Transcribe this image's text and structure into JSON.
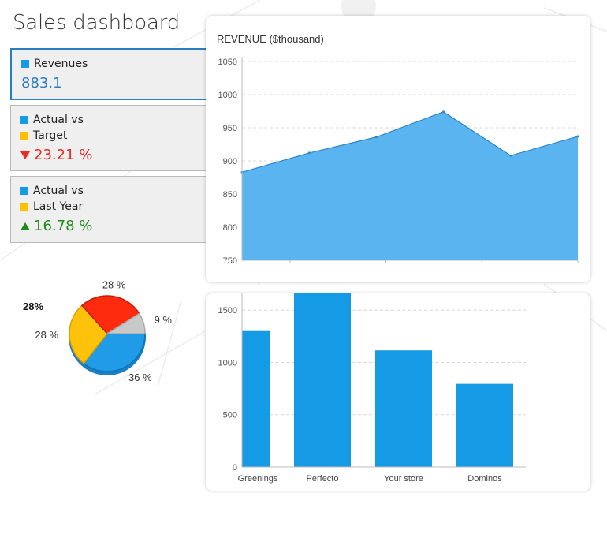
{
  "title": "Sales dashboard",
  "colors": {
    "accent": "#2a7ec0",
    "series_blue": "#159ae6",
    "area_fill": "#5ab4ef",
    "area_line": "#2f86c9",
    "legend_yellow": "#ffc000",
    "red": "#e82b22",
    "green": "#1e8a17",
    "pie_red": "#ff2b0f",
    "pie_yellow": "#ffc20a",
    "pie_blue": "#1f9be8",
    "pie_gray": "#c9c9c9"
  },
  "kpis": [
    {
      "lines": [
        "Revenues"
      ],
      "swatches": [
        "blue"
      ],
      "value": "883.1",
      "trend": "none"
    },
    {
      "lines": [
        "Actual vs",
        "Target"
      ],
      "swatches": [
        "blue",
        "yellow"
      ],
      "value": "23.21 %",
      "trend": "down"
    },
    {
      "lines": [
        "Actual vs",
        "Last Year"
      ],
      "swatches": [
        "blue",
        "yellow"
      ],
      "value": "16.78 %",
      "trend": "up"
    }
  ],
  "chart_data": [
    {
      "type": "area",
      "title": "REVENUE ($thousand)",
      "xlabel": "",
      "ylabel": "",
      "ylim": [
        750,
        1050
      ],
      "yticks": [
        750,
        800,
        850,
        900,
        950,
        1000,
        1050
      ],
      "grid": true,
      "x": [
        0,
        1,
        2,
        3,
        4,
        5
      ],
      "series": [
        {
          "name": "Revenue",
          "values": [
            883,
            912,
            936,
            974,
            908,
            937
          ]
        }
      ]
    },
    {
      "type": "bar",
      "title": "",
      "xlabel": "",
      "ylabel": "",
      "ylim": [
        0,
        1660
      ],
      "yticks": [
        0,
        500,
        1000,
        1500
      ],
      "grid": true,
      "categories": [
        "Greenings",
        "Perfecto",
        "Your store",
        "Dominos"
      ],
      "values": [
        1300,
        1660,
        1115,
        795
      ]
    },
    {
      "type": "pie",
      "title": "",
      "outside_label": "28%",
      "slices": [
        {
          "label": "36 %",
          "value": 36,
          "color": "blue"
        },
        {
          "label": "28 %",
          "value": 28,
          "color": "yellow"
        },
        {
          "label": "28 %",
          "value": 28,
          "color": "red"
        },
        {
          "label": "9 %",
          "value": 9,
          "color": "gray"
        }
      ]
    }
  ]
}
